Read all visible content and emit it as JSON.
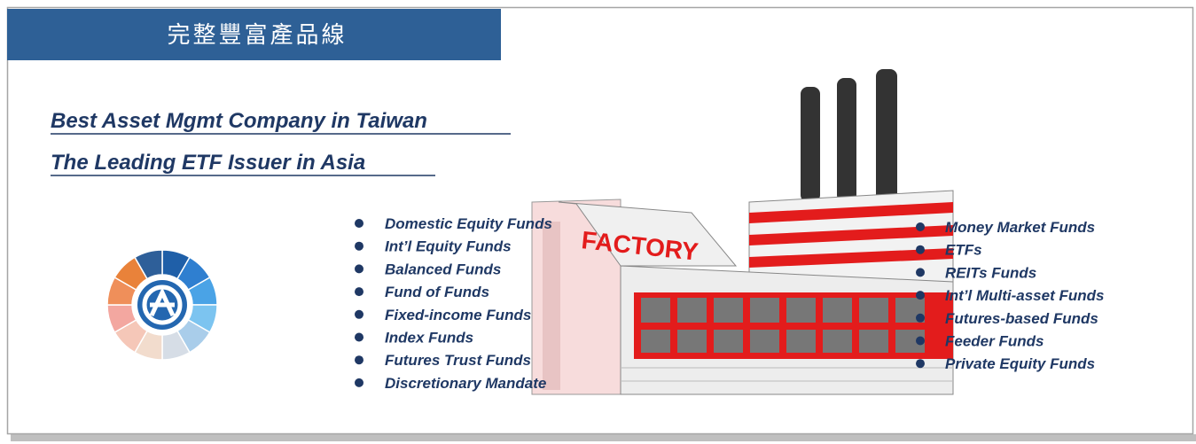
{
  "header": {
    "title": "完整豐富產品線"
  },
  "headlines": [
    "Best Asset Mgmt Company  in Taiwan",
    "The Leading ETF Issuer in Asia"
  ],
  "factory_sign": "FACTORY",
  "left_list": [
    "Domestic Equity Funds",
    "Int’l Equity Funds",
    "Balanced Funds",
    "Fund of Funds",
    "Fixed-income Funds",
    "Index Funds",
    "Futures Trust Funds",
    "Discretionary Mandate"
  ],
  "right_list": [
    "Money Market Funds",
    "ETFs",
    "REITs Funds",
    "Int’l Multi-asset Funds",
    "Futures-based Funds",
    "Feeder Funds",
    "Private Equity Funds"
  ]
}
